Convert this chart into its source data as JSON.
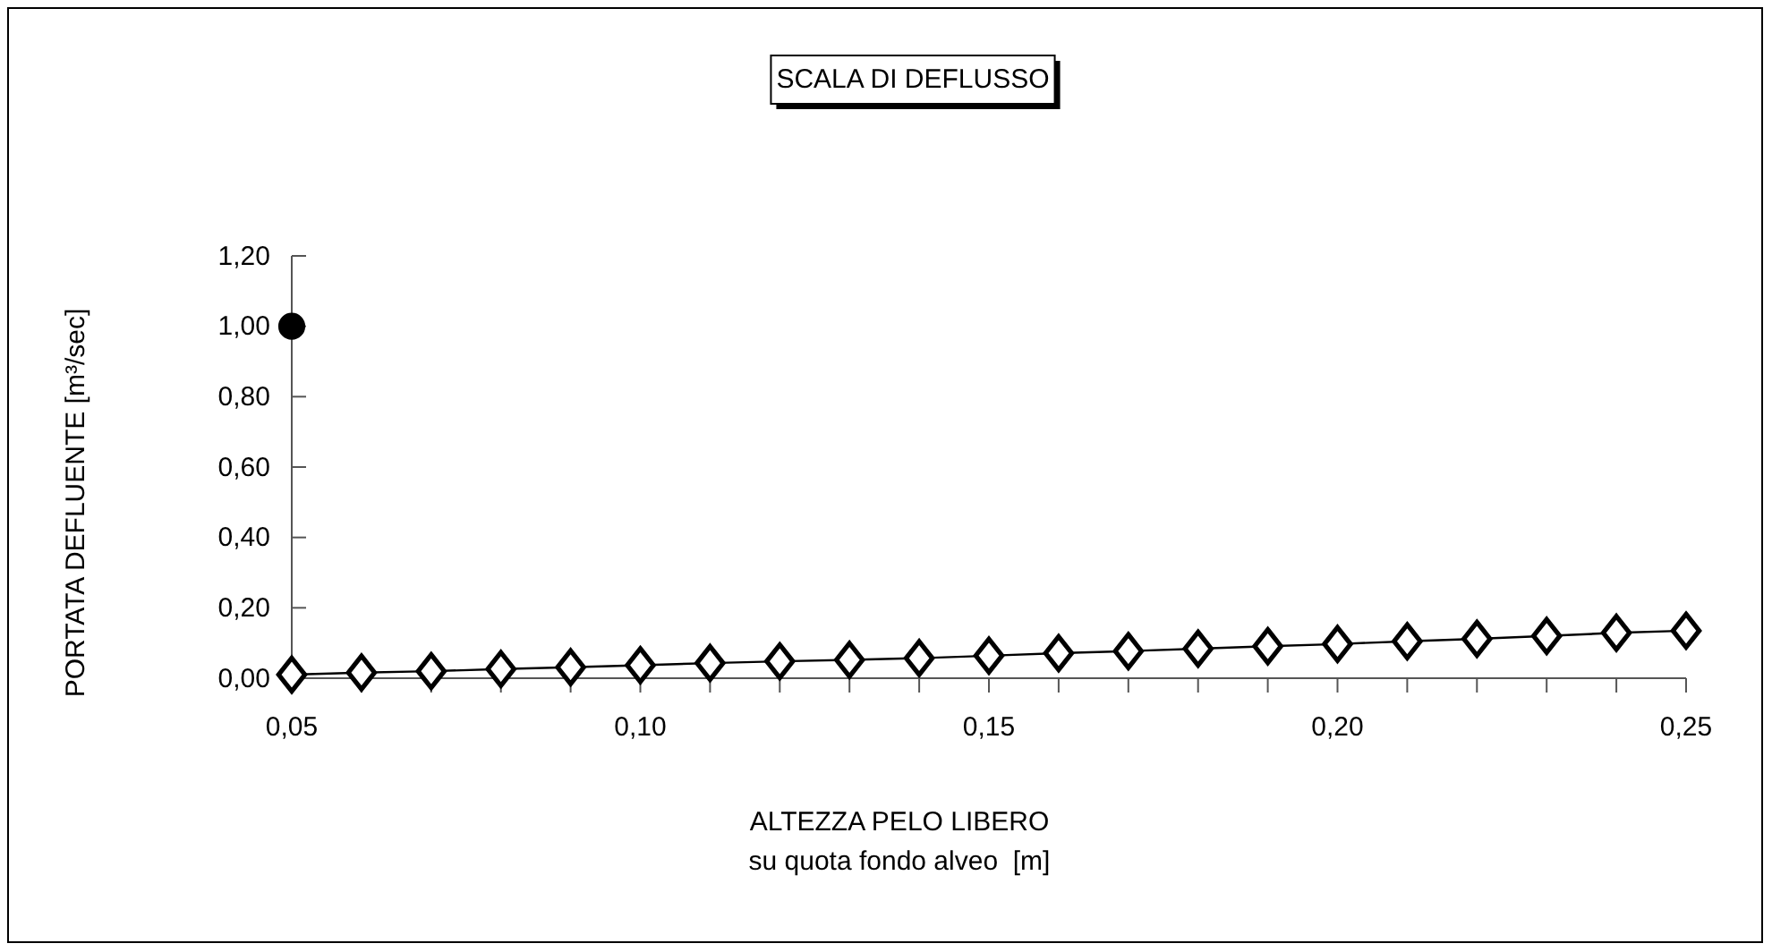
{
  "chart_data": {
    "type": "line",
    "title": "SCALA DI DEFLUSSO",
    "xlabel": "ALTEZZA PELO LIBERO\nsu quota fondo alveo  [m]",
    "ylabel": "PORTATA DEFLUENTE [m³/sec]",
    "xlim": [
      0.05,
      0.25
    ],
    "xticks": [
      {
        "value": 0.05,
        "label": "0,05"
      },
      {
        "value": 0.06,
        "label": null
      },
      {
        "value": 0.07,
        "label": null
      },
      {
        "value": 0.08,
        "label": null
      },
      {
        "value": 0.09,
        "label": null
      },
      {
        "value": 0.1,
        "label": "0,10"
      },
      {
        "value": 0.11,
        "label": null
      },
      {
        "value": 0.12,
        "label": null
      },
      {
        "value": 0.13,
        "label": null
      },
      {
        "value": 0.14,
        "label": null
      },
      {
        "value": 0.15,
        "label": "0,15"
      },
      {
        "value": 0.16,
        "label": null
      },
      {
        "value": 0.17,
        "label": null
      },
      {
        "value": 0.18,
        "label": null
      },
      {
        "value": 0.19,
        "label": null
      },
      {
        "value": 0.2,
        "label": "0,20"
      },
      {
        "value": 0.21,
        "label": null
      },
      {
        "value": 0.22,
        "label": null
      },
      {
        "value": 0.23,
        "label": null
      },
      {
        "value": 0.24,
        "label": null
      },
      {
        "value": 0.25,
        "label": "0,25"
      }
    ],
    "ylim": [
      0,
      1.2
    ],
    "yticks": [
      {
        "value": 0,
        "label": "0,00"
      },
      {
        "value": 0.2,
        "label": "0,20"
      },
      {
        "value": 0.4,
        "label": "0,40"
      },
      {
        "value": 0.6,
        "label": "0,60"
      },
      {
        "value": 0.8,
        "label": "0,80"
      },
      {
        "value": 1.0,
        "label": "1,00"
      },
      {
        "value": 1.2,
        "label": "1,20"
      }
    ],
    "grid": false,
    "series": [
      {
        "marker": "diamond",
        "color": "#000000",
        "x": [
          0.05,
          0.06,
          0.07,
          0.08,
          0.09,
          0.1,
          0.11,
          0.12,
          0.13,
          0.14,
          0.15,
          0.16,
          0.17,
          0.18,
          0.19,
          0.2,
          0.21,
          0.22,
          0.23,
          0.24,
          0.25
        ],
        "values": [
          0.01,
          0.016,
          0.02,
          0.026,
          0.031,
          0.037,
          0.043,
          0.048,
          0.052,
          0.057,
          0.064,
          0.071,
          0.077,
          0.084,
          0.091,
          0.097,
          0.105,
          0.112,
          0.12,
          0.129,
          0.135
        ]
      },
      {
        "type": "scatter",
        "marker": "circle",
        "color": "#000000",
        "x": [
          0.05
        ],
        "values": [
          1.0
        ]
      }
    ]
  }
}
